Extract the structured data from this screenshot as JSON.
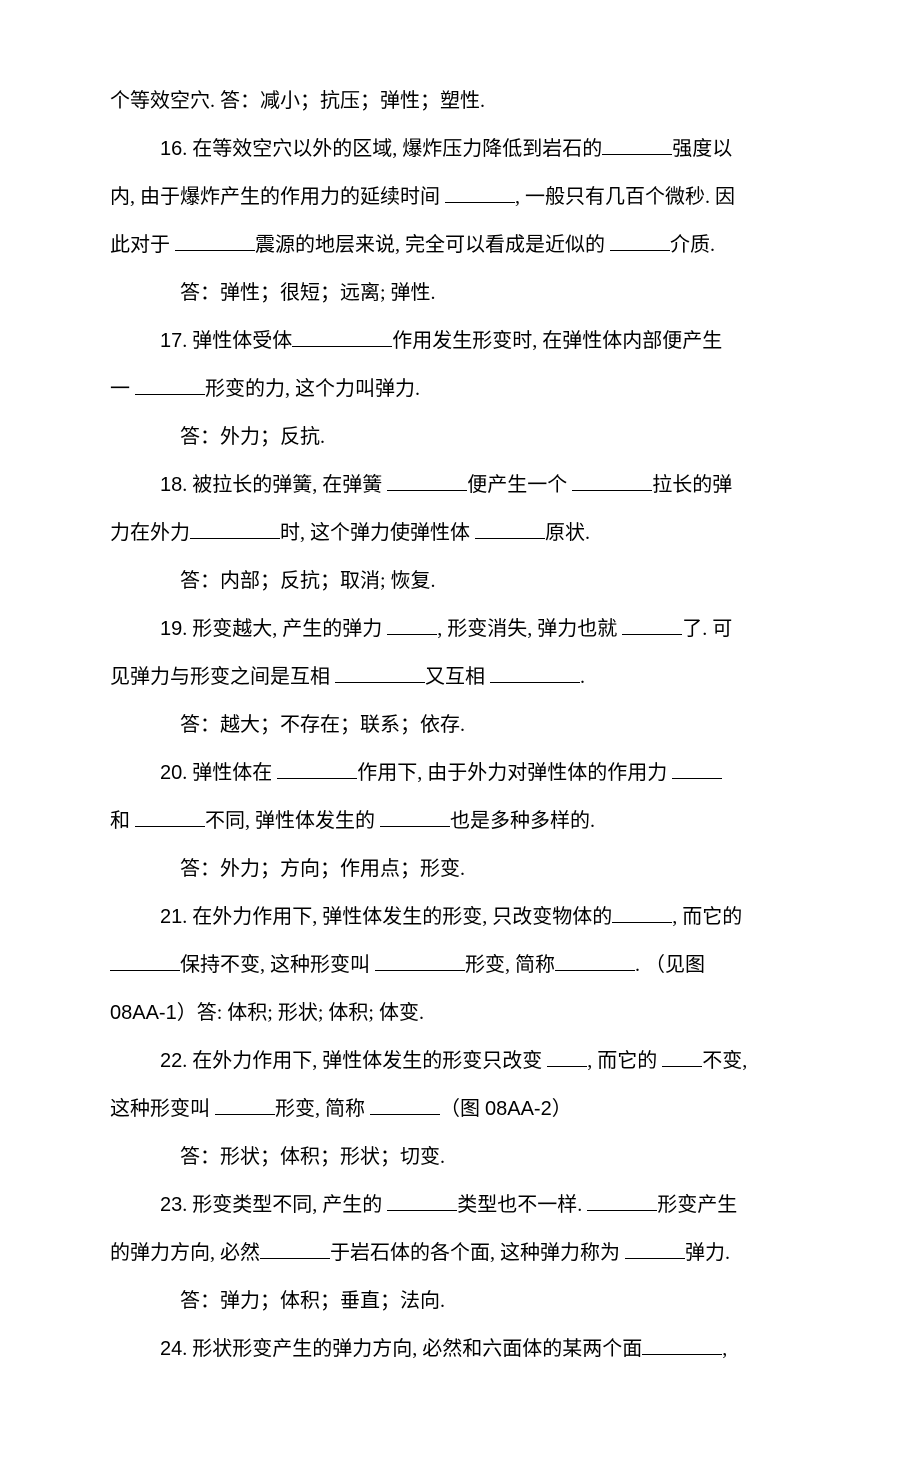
{
  "typography": {
    "body_font": "SimSun",
    "number_font": "Arial",
    "font_size_pt": 15,
    "line_height": 2.1,
    "text_color": "#000000",
    "background_color": "#ffffff",
    "blank_underline_color": "#000000"
  },
  "lines": {
    "l0": "个等效空穴. 答：减小；抗压；弹性；塑性.",
    "q16a": "16",
    "q16b": ".  在等效空穴以外的区域, 爆炸压力降低到岩石的",
    "q16c": "强度以",
    "q16d": "内, 由于爆炸产生的作用力的延续时间",
    "q16e": ", 一般只有几百个微秒. 因",
    "q16f": "此对于",
    "q16g": "震源的地层来说, 完全可以看成是近似的",
    "q16h": "介质.",
    "a16": "答：弹性；很短；远离; 弹性.",
    "q17a": "17",
    "q17b": ".  弹性体受体",
    "q17c": "作用发生形变时, 在弹性体内部便产生",
    "q17d": "一",
    "q17e": "形变的力, 这个力叫弹力.",
    "a17": "答：外力；反抗.",
    "q18a": "18",
    "q18b": ".  被拉长的弹簧, 在弹簧",
    "q18c": "便产生一个",
    "q18d": "拉长的弹",
    "q18e": "力在外力",
    "q18f": "时, 这个弹力使弹性体",
    "q18g": "原状.",
    "a18": "答：内部；反抗；取消; 恢复.",
    "q19a": "19",
    "q19b": ".  形变越大, 产生的弹力",
    "q19c": ", 形变消失, 弹力也就",
    "q19d": "了. 可",
    "q19e": "见弹力与形变之间是互相",
    "q19f": "又互相",
    "q19g": ".",
    "a19": "答：越大；不存在；联系；依存.",
    "q20a": "20",
    "q20b": ".  弹性体在",
    "q20c": "作用下, 由于外力对弹性体的作用力",
    "q20d": "和",
    "q20e": "不同, 弹性体发生的",
    "q20f": "也是多种多样的.",
    "a20": "答：外力；方向；作用点；形变.",
    "q21a": "21",
    "q21b": ".  在外力作用下, 弹性体发生的形变, 只改变物体的",
    "q21c": ", 而它的",
    "q21d": "保持不变, 这种形变叫",
    "q21e": "形变, 简称",
    "q21f": ".  （见图",
    "q21g": "08AA-1",
    "q21h": "）答: 体积; 形状; 体积; 体变.",
    "q22a": "22",
    "q22b": ".  在外力作用下, 弹性体发生的形变只改变",
    "q22c": ", 而它的",
    "q22d": "不变,",
    "q22e": "这种形变叫",
    "q22f": "形变, 简称",
    "q22g": "（图 ",
    "q22h": "08AA-2",
    "q22i": "）",
    "a22": "答：形状；体积；形状；切变.",
    "q23a": "23",
    "q23b": ".  形变类型不同, 产生的",
    "q23c": "类型也不一样.",
    "q23d": "形变产生",
    "q23e": "的弹力方向, 必然",
    "q23f": "于岩石体的各个面, 这种弹力称为",
    "q23g": "弹力.",
    "a23": "答：弹力；体积；垂直；法向.",
    "q24a": "24",
    "q24b": ".  形状形变产生的弹力方向, 必然和六面体的某两个面",
    "q24c": ","
  }
}
